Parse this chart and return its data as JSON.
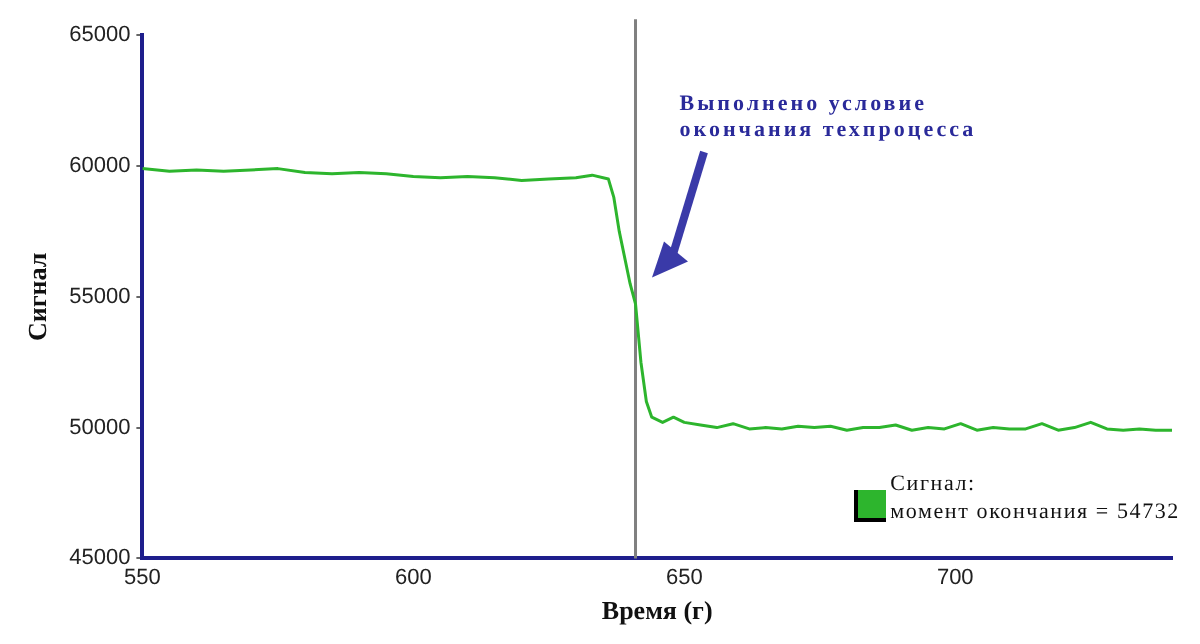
{
  "chart_data": {
    "type": "line",
    "xlabel": "Время (г)",
    "ylabel": "Сигнал",
    "x": [
      550,
      555,
      560,
      565,
      570,
      575,
      580,
      585,
      590,
      595,
      600,
      605,
      610,
      615,
      620,
      625,
      630,
      633,
      636,
      637,
      638,
      640,
      641,
      642,
      643,
      644,
      646,
      648,
      650,
      653,
      656,
      659,
      662,
      665,
      668,
      671,
      674,
      677,
      680,
      683,
      686,
      689,
      692,
      695,
      698,
      701,
      704,
      707,
      710,
      713,
      716,
      719,
      722,
      725,
      728,
      731,
      734,
      737,
      740
    ],
    "series": [
      {
        "color": "#2db52d",
        "values": [
          59900,
          59800,
          59850,
          59800,
          59850,
          59900,
          59750,
          59700,
          59750,
          59700,
          59600,
          59550,
          59600,
          59550,
          59450,
          59500,
          59550,
          59650,
          59500,
          58800,
          57500,
          55500,
          54732,
          52500,
          51000,
          50400,
          50200,
          50400,
          50200,
          50100,
          50000,
          50150,
          49950,
          50000,
          49950,
          50050,
          50000,
          50050,
          49900,
          50000,
          50000,
          50100,
          49900,
          50000,
          49950,
          50150,
          49900,
          50000,
          49950,
          49950,
          50150,
          49900,
          50000,
          50200,
          49950,
          49900,
          49950,
          49900,
          49900
        ]
      }
    ],
    "xlim": [
      550,
      740
    ],
    "xticks": [
      550,
      600,
      650,
      700
    ],
    "ylim": [
      45000,
      65000
    ],
    "yticks": [
      45000,
      50000,
      55000,
      60000,
      65000
    ],
    "ref_lines": [
      {
        "axis": "x",
        "value": 641,
        "color": "#808080"
      }
    ],
    "annotations": [
      "Выполнено условие окончания техпроцесса",
      "Сигнал:\nмомент окончания = 54732"
    ],
    "grid": false,
    "legend": false,
    "marker": "none",
    "line_style": "solid"
  }
}
